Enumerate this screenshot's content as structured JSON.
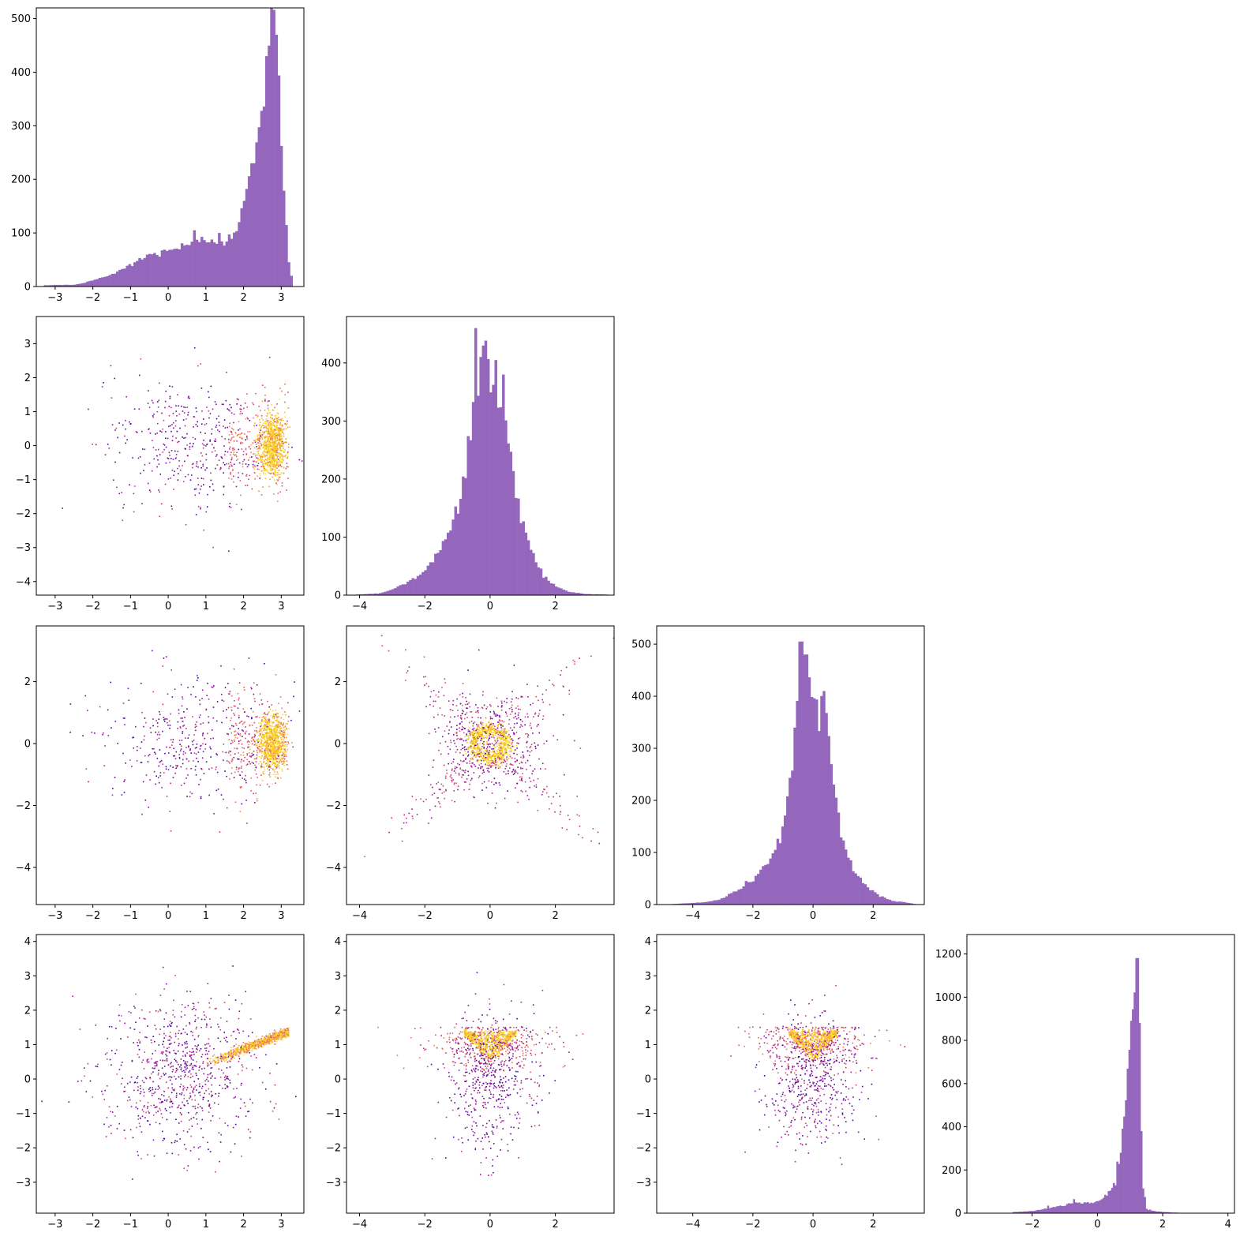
{
  "chart_data": {
    "type": "corner-plot",
    "grid": false,
    "colors": {
      "histogram": "#9467bd",
      "frame": "#000000",
      "scatter_low": "#3b0f9a",
      "scatter_mid": "#c1249b",
      "scatter_high": "#f7e225"
    },
    "variables": [
      {
        "id": "v0",
        "xlim": [
          -3.5,
          3.6
        ],
        "ylim": [
          -3.5,
          3.6
        ],
        "ticks": [
          -3,
          -2,
          -1,
          0,
          1,
          2,
          3
        ],
        "tick_labels": [
          "−3",
          "−2",
          "−1",
          "0",
          "1",
          "2",
          "3"
        ]
      },
      {
        "id": "v1",
        "xlim": [
          -4.4,
          3.8
        ],
        "ylim": [
          -4.4,
          3.8
        ],
        "ticks": [
          -4,
          -2,
          0,
          2
        ],
        "tick_labels": [
          "−4",
          "−2",
          "0",
          "2"
        ],
        "scatter_yticks": [
          -4,
          -3,
          -2,
          -1,
          0,
          1,
          2,
          3
        ],
        "scatter_ytick_labels": [
          "−4",
          "−3",
          "−2",
          "−1",
          "0",
          "1",
          "2",
          "3"
        ]
      },
      {
        "id": "v2",
        "xlim": [
          -5.2,
          3.7
        ],
        "ylim": [
          -5.2,
          3.8
        ],
        "ticks": [
          -4,
          -2,
          0,
          2
        ],
        "tick_labels": [
          "−4",
          "−2",
          "0",
          "2"
        ]
      },
      {
        "id": "v3",
        "xlim": [
          -4.0,
          4.2
        ],
        "ylim": [
          -3.9,
          4.2
        ],
        "ticks": [
          -2,
          0,
          2,
          4
        ],
        "tick_labels": [
          "−2",
          "0",
          "2",
          "4"
        ],
        "scatter_yticks": [
          -3,
          -2,
          -1,
          0,
          1,
          2,
          3,
          4
        ],
        "scatter_ytick_labels": [
          "−3",
          "−2",
          "−1",
          "0",
          "1",
          "2",
          "3",
          "4"
        ]
      }
    ],
    "histograms": [
      {
        "variable": 0,
        "ylim": [
          0,
          520
        ],
        "yticks": [
          0,
          100,
          200,
          300,
          400,
          500
        ],
        "ytick_labels": [
          "0",
          "100",
          "200",
          "300",
          "400",
          "500"
        ],
        "profile": [
          [
            -3.3,
            2
          ],
          [
            -3.0,
            3
          ],
          [
            -2.6,
            3
          ],
          [
            -2.3,
            5
          ],
          [
            -2.0,
            12
          ],
          [
            -1.6,
            20
          ],
          [
            -1.3,
            28
          ],
          [
            -1.0,
            42
          ],
          [
            -0.6,
            55
          ],
          [
            -0.3,
            62
          ],
          [
            0.0,
            70
          ],
          [
            0.3,
            72
          ],
          [
            0.6,
            78
          ],
          [
            0.9,
            85
          ],
          [
            1.2,
            88
          ],
          [
            1.5,
            85
          ],
          [
            1.8,
            110
          ],
          [
            2.0,
            150
          ],
          [
            2.2,
            200
          ],
          [
            2.4,
            270
          ],
          [
            2.55,
            380
          ],
          [
            2.7,
            470
          ],
          [
            2.8,
            495
          ],
          [
            2.9,
            440
          ],
          [
            3.0,
            300
          ],
          [
            3.1,
            150
          ],
          [
            3.2,
            50
          ],
          [
            3.3,
            5
          ]
        ],
        "spikes": [
          [
            0.7,
            105
          ],
          [
            1.35,
            100
          ],
          [
            2.25,
            230
          ],
          [
            2.62,
            430
          ],
          [
            2.86,
            470
          ]
        ]
      },
      {
        "variable": 1,
        "ylim": [
          0,
          480
        ],
        "yticks": [
          0,
          100,
          200,
          300,
          400
        ],
        "ytick_labels": [
          "0",
          "100",
          "200",
          "300",
          "400"
        ],
        "profile": [
          [
            -4.1,
            1
          ],
          [
            -3.4,
            3
          ],
          [
            -3.0,
            10
          ],
          [
            -2.6,
            20
          ],
          [
            -2.2,
            35
          ],
          [
            -1.9,
            50
          ],
          [
            -1.6,
            70
          ],
          [
            -1.3,
            100
          ],
          [
            -1.0,
            150
          ],
          [
            -0.8,
            200
          ],
          [
            -0.6,
            280
          ],
          [
            -0.45,
            360
          ],
          [
            -0.3,
            420
          ],
          [
            -0.2,
            440
          ],
          [
            -0.05,
            390
          ],
          [
            0.1,
            365
          ],
          [
            0.3,
            345
          ],
          [
            0.5,
            270
          ],
          [
            0.7,
            200
          ],
          [
            0.9,
            150
          ],
          [
            1.1,
            110
          ],
          [
            1.4,
            60
          ],
          [
            1.7,
            30
          ],
          [
            2.0,
            15
          ],
          [
            2.4,
            6
          ],
          [
            2.9,
            2
          ],
          [
            3.6,
            1
          ]
        ],
        "spikes": [
          [
            -0.45,
            460
          ],
          [
            -0.2,
            430
          ],
          [
            0.38,
            380
          ],
          [
            0.15,
            405
          ]
        ]
      },
      {
        "variable": 2,
        "ylim": [
          0,
          535
        ],
        "yticks": [
          0,
          100,
          200,
          300,
          400,
          500
        ],
        "ytick_labels": [
          "0",
          "100",
          "200",
          "300",
          "400",
          "500"
        ],
        "profile": [
          [
            -4.7,
            1
          ],
          [
            -4.0,
            3
          ],
          [
            -3.5,
            5
          ],
          [
            -3.0,
            12
          ],
          [
            -2.6,
            25
          ],
          [
            -2.2,
            40
          ],
          [
            -1.8,
            60
          ],
          [
            -1.4,
            90
          ],
          [
            -1.1,
            130
          ],
          [
            -0.9,
            180
          ],
          [
            -0.7,
            260
          ],
          [
            -0.55,
            360
          ],
          [
            -0.45,
            450
          ],
          [
            -0.3,
            470
          ],
          [
            -0.15,
            420
          ],
          [
            0.0,
            390
          ],
          [
            0.15,
            360
          ],
          [
            0.3,
            400
          ],
          [
            0.5,
            350
          ],
          [
            0.7,
            230
          ],
          [
            0.9,
            150
          ],
          [
            1.1,
            100
          ],
          [
            1.4,
            60
          ],
          [
            1.7,
            40
          ],
          [
            2.1,
            20
          ],
          [
            2.6,
            8
          ],
          [
            3.2,
            3
          ],
          [
            3.4,
            1
          ]
        ],
        "spikes": [
          [
            -0.4,
            505
          ],
          [
            -0.28,
            480
          ],
          [
            0.38,
            410
          ],
          [
            1.25,
            85
          ]
        ]
      },
      {
        "variable": 3,
        "ylim": [
          0,
          1290
        ],
        "yticks": [
          0,
          200,
          400,
          600,
          800,
          1000,
          1200
        ],
        "ytick_labels": [
          "0",
          "200",
          "400",
          "600",
          "800",
          "1000",
          "1200"
        ],
        "profile": [
          [
            -2.6,
            5
          ],
          [
            -2.0,
            10
          ],
          [
            -1.6,
            20
          ],
          [
            -1.2,
            30
          ],
          [
            -0.8,
            45
          ],
          [
            -0.5,
            50
          ],
          [
            -0.2,
            48
          ],
          [
            0.0,
            55
          ],
          [
            0.2,
            70
          ],
          [
            0.4,
            110
          ],
          [
            0.55,
            180
          ],
          [
            0.7,
            280
          ],
          [
            0.8,
            400
          ],
          [
            0.9,
            600
          ],
          [
            1.0,
            850
          ],
          [
            1.1,
            1000
          ],
          [
            1.17,
            1150
          ],
          [
            1.22,
            1230
          ],
          [
            1.3,
            850
          ],
          [
            1.38,
            150
          ],
          [
            1.5,
            20
          ],
          [
            1.8,
            8
          ],
          [
            2.3,
            3
          ],
          [
            2.7,
            1
          ]
        ],
        "spikes": [
          [
            -0.7,
            65
          ],
          [
            -1.5,
            35
          ]
        ]
      }
    ],
    "scatter_panels": [
      {
        "row": 1,
        "col": 0,
        "structure": "wedge"
      },
      {
        "row": 2,
        "col": 0,
        "structure": "wedge"
      },
      {
        "row": 2,
        "col": 1,
        "structure": "ring-and-x"
      },
      {
        "row": 3,
        "col": 0,
        "structure": "band"
      },
      {
        "row": 3,
        "col": 1,
        "structure": "triangle"
      },
      {
        "row": 3,
        "col": 2,
        "structure": "triangle"
      }
    ]
  }
}
